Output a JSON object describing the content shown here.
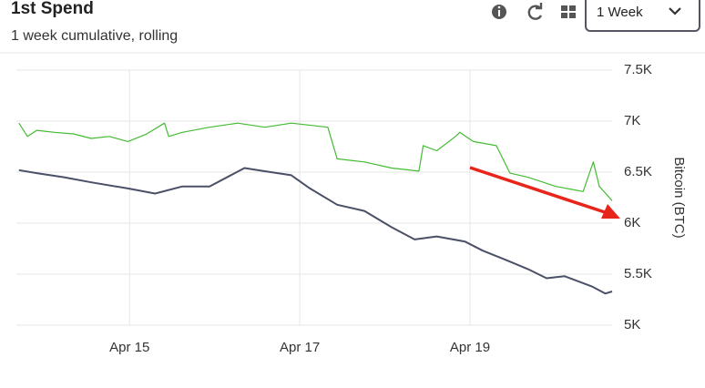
{
  "chart_data": {
    "type": "line",
    "title": "1st Spend",
    "subtitle": "1 week cumulative, rolling",
    "range_selector": "1 Week",
    "y_label": "Bitcoin (BTC)",
    "xlim": [
      13.67,
      20.67
    ],
    "xticks": [
      {
        "value": 15,
        "label": "Apr 15"
      },
      {
        "value": 17,
        "label": "Apr 17"
      },
      {
        "value": 19,
        "label": "Apr 19"
      }
    ],
    "ylim": [
      5000,
      7500
    ],
    "yticks": [
      {
        "value": 5000,
        "label": "5K"
      },
      {
        "value": 5500,
        "label": "5.5K"
      },
      {
        "value": 6000,
        "label": "6K"
      },
      {
        "value": 6500,
        "label": "6.5K"
      },
      {
        "value": 7000,
        "label": "7K"
      },
      {
        "value": 7500,
        "label": "7.5K"
      }
    ],
    "grid": true,
    "series": [
      {
        "color": "#44bb33",
        "x": [
          13.7,
          13.8,
          13.91,
          14.12,
          14.34,
          14.55,
          14.76,
          14.98,
          15.19,
          15.41,
          15.46,
          15.62,
          15.94,
          16.27,
          16.59,
          16.9,
          17.33,
          17.44,
          17.76,
          18.08,
          18.4,
          18.45,
          18.61,
          18.83,
          18.88,
          19.04,
          19.31,
          19.47,
          19.68,
          20.01,
          20.33,
          20.45,
          20.52,
          20.67
        ],
        "values": [
          6980,
          6850,
          6910,
          6890,
          6875,
          6830,
          6850,
          6800,
          6870,
          6980,
          6850,
          6890,
          6940,
          6980,
          6940,
          6980,
          6940,
          6630,
          6600,
          6540,
          6510,
          6760,
          6710,
          6850,
          6890,
          6800,
          6760,
          6490,
          6450,
          6360,
          6310,
          6600,
          6360,
          6220
        ]
      },
      {
        "color": "#4a5068",
        "x": [
          13.7,
          13.91,
          14.23,
          14.55,
          14.98,
          15.3,
          15.62,
          15.94,
          16.35,
          16.58,
          16.9,
          17.12,
          17.44,
          17.76,
          18.08,
          18.35,
          18.61,
          18.94,
          19.15,
          19.42,
          19.68,
          19.9,
          20.11,
          20.43,
          20.59,
          20.67
        ],
        "values": [
          6520,
          6490,
          6450,
          6400,
          6340,
          6290,
          6360,
          6360,
          6540,
          6510,
          6470,
          6340,
          6180,
          6120,
          5960,
          5840,
          5870,
          5820,
          5730,
          5640,
          5550,
          5460,
          5480,
          5380,
          5310,
          5330
        ]
      }
    ]
  }
}
